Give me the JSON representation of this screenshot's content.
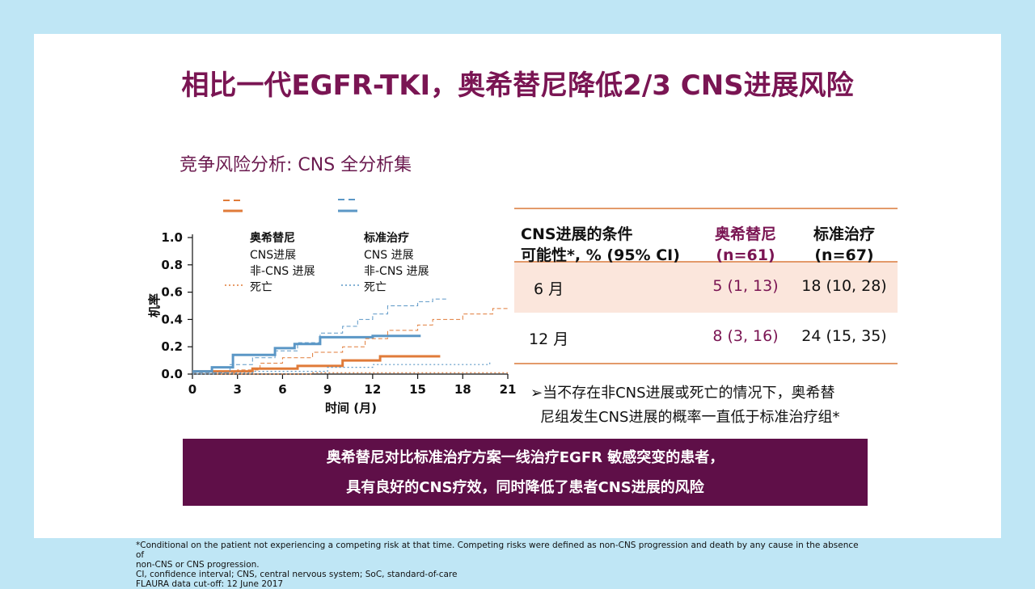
{
  "title": "相比一代EGFR-TKI，奥希替尼降低2/3 CNS进展风险",
  "subtitle": "竞争风险分析: CNS 全分析集",
  "legend": {
    "osimertinib": {
      "head": "奥希替尼",
      "cns": "CNS进展",
      "noncns": "非-CNS 进展",
      "death": "死亡"
    },
    "soc": {
      "head": "标准治疗",
      "cns": "CNS 进展",
      "noncns": "非-CNS 进展",
      "death": "死亡"
    }
  },
  "colors": {
    "osimertinib": "#e07b39",
    "soc": "#5b97c6",
    "title": "#7a1553",
    "banner": "#5f0f48"
  },
  "chart_data": {
    "type": "line",
    "xlabel": "时间 (月)",
    "ylabel": "机率",
    "xlim": [
      0,
      21
    ],
    "ylim": [
      0,
      1.0
    ],
    "xticks": [
      "0",
      "3",
      "6",
      "9",
      "12",
      "15",
      "18",
      "21"
    ],
    "yticks": [
      "0.0",
      "0.2",
      "0.4",
      "0.6",
      "0.8",
      "1.0"
    ],
    "series": [
      {
        "name": "奥希替尼 CNS进展",
        "style": "solid",
        "color": "#e07b39",
        "points": [
          [
            0,
            0.02
          ],
          [
            4,
            0.02
          ],
          [
            4,
            0.04
          ],
          [
            7,
            0.04
          ],
          [
            7,
            0.06
          ],
          [
            10,
            0.06
          ],
          [
            10,
            0.1
          ],
          [
            12.5,
            0.1
          ],
          [
            12.5,
            0.13
          ],
          [
            16.5,
            0.13
          ]
        ]
      },
      {
        "name": "标准治疗 CNS 进展",
        "style": "solid",
        "color": "#5b97c6",
        "points": [
          [
            0,
            0.02
          ],
          [
            1.3,
            0.02
          ],
          [
            1.3,
            0.05
          ],
          [
            2.7,
            0.05
          ],
          [
            2.7,
            0.14
          ],
          [
            5.5,
            0.14
          ],
          [
            5.5,
            0.19
          ],
          [
            6.8,
            0.19
          ],
          [
            6.8,
            0.22
          ],
          [
            8.5,
            0.22
          ],
          [
            8.5,
            0.27
          ],
          [
            12,
            0.27
          ],
          [
            12,
            0.28
          ],
          [
            15.2,
            0.28
          ]
        ]
      },
      {
        "name": "奥希替尼 非-CNS 进展",
        "style": "dashed",
        "color": "#e07b39",
        "points": [
          [
            0,
            0.01
          ],
          [
            3,
            0.01
          ],
          [
            3,
            0.03
          ],
          [
            4.5,
            0.03
          ],
          [
            4.5,
            0.08
          ],
          [
            6,
            0.08
          ],
          [
            6,
            0.12
          ],
          [
            8,
            0.12
          ],
          [
            8,
            0.16
          ],
          [
            10,
            0.16
          ],
          [
            10,
            0.2
          ],
          [
            11.5,
            0.2
          ],
          [
            11.5,
            0.26
          ],
          [
            13,
            0.26
          ],
          [
            13,
            0.32
          ],
          [
            15,
            0.32
          ],
          [
            15,
            0.36
          ],
          [
            16,
            0.36
          ],
          [
            16,
            0.4
          ],
          [
            18,
            0.4
          ],
          [
            18,
            0.44
          ],
          [
            20,
            0.44
          ],
          [
            20,
            0.48
          ],
          [
            21,
            0.48
          ]
        ]
      },
      {
        "name": "标准治疗 非-CNS 进展",
        "style": "dashed",
        "color": "#5b97c6",
        "points": [
          [
            0,
            0.01
          ],
          [
            2.5,
            0.01
          ],
          [
            2.5,
            0.07
          ],
          [
            4,
            0.07
          ],
          [
            4,
            0.12
          ],
          [
            5.5,
            0.12
          ],
          [
            5.5,
            0.17
          ],
          [
            7,
            0.17
          ],
          [
            7,
            0.23
          ],
          [
            8.5,
            0.23
          ],
          [
            8.5,
            0.3
          ],
          [
            10,
            0.3
          ],
          [
            10,
            0.35
          ],
          [
            11,
            0.35
          ],
          [
            11,
            0.4
          ],
          [
            12,
            0.4
          ],
          [
            12,
            0.44
          ],
          [
            13,
            0.44
          ],
          [
            13,
            0.5
          ],
          [
            15,
            0.5
          ],
          [
            15,
            0.53
          ],
          [
            16,
            0.53
          ],
          [
            16,
            0.55
          ],
          [
            17,
            0.55
          ]
        ]
      },
      {
        "name": "奥希替尼 死亡",
        "style": "dotted",
        "color": "#e07b39",
        "points": [
          [
            0,
            0.0
          ],
          [
            8,
            0.0
          ],
          [
            8,
            0.01
          ],
          [
            21,
            0.01
          ]
        ]
      },
      {
        "name": "标准治疗 死亡",
        "style": "dotted",
        "color": "#5b97c6",
        "points": [
          [
            0,
            0.0
          ],
          [
            1.5,
            0.0
          ],
          [
            1.5,
            0.01
          ],
          [
            4,
            0.01
          ],
          [
            4,
            0.02
          ],
          [
            9,
            0.02
          ],
          [
            9,
            0.05
          ],
          [
            12,
            0.05
          ],
          [
            12,
            0.07
          ],
          [
            19.8,
            0.07
          ],
          [
            19.8,
            0.1
          ]
        ]
      }
    ]
  },
  "table": {
    "headers": [
      "CNS进展的条件\n可能性*, % (95% CI)",
      "奥希替尼\n(n=61)",
      "标准治疗\n(n=67)"
    ],
    "header_lines": [
      [
        "CNS进展的条件",
        "可能性*, % (95% CI)"
      ],
      [
        "奥希替尼",
        "(n=61)"
      ],
      [
        "标准治疗",
        "(n=67)"
      ]
    ],
    "rows": [
      [
        "6 月",
        "5 (1, 13)",
        "18 (10, 28)"
      ],
      [
        "12 月",
        "8 (3, 16)",
        "24 (15, 35)"
      ]
    ]
  },
  "bullet": {
    "line1": "当不存在非CNS进展或死亡的情况下，奥希替",
    "line2": "尼组发生CNS进展的概率一直低于标准治疗组*"
  },
  "banner": {
    "line1": "奥希替尼对比标准治疗方案一线治疗EGFR 敏感突变的患者，",
    "line2": "具有良好的CNS疗效，同时降低了患者CNS进展的风险"
  },
  "footnotes": [
    "*Conditional on the patient not experiencing a competing risk at that time. Competing risks were defined as non-CNS progression and death by any cause in the absence of",
    "non-CNS or CNS progression.",
    "CI, confidence interval; CNS, central nervous system; SoC, standard-of-care",
    "FLAURA data cut-off: 12 June 2017"
  ]
}
